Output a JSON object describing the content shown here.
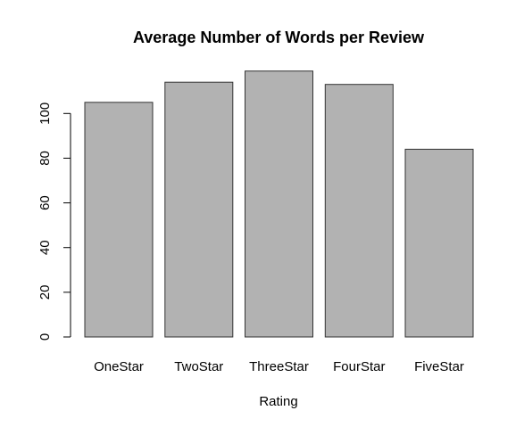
{
  "chart_data": {
    "type": "bar",
    "title": "Average Number of Words per Review",
    "xlabel": "Rating",
    "ylabel": "",
    "categories": [
      "OneStar",
      "TwoStar",
      "ThreeStar",
      "FourStar",
      "FiveStar"
    ],
    "values": [
      105,
      114,
      119,
      113,
      84
    ],
    "yticks": [
      0,
      20,
      40,
      60,
      80,
      100
    ],
    "ylim": [
      0,
      120
    ],
    "bar_color": "#b2b2b2",
    "bar_border_color": "#333333",
    "grid": false,
    "legend": "none"
  }
}
